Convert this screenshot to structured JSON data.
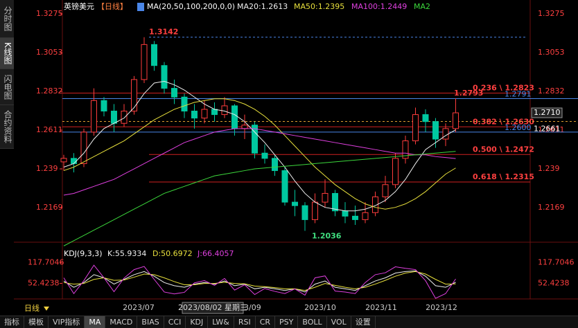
{
  "chart_data": [
    {
      "type": "candlestick",
      "title": "英镑美元",
      "period_label": "【日线】",
      "indicator": "MA(20,50,100,200,0,0)",
      "up_color": "#ff3c3c",
      "down_color": "#00c8a0",
      "ylim": [
        1.1991,
        1.3295
      ],
      "yticks": [
        1.3275,
        1.3053,
        1.2832,
        1.2611,
        1.239,
        1.2169
      ],
      "ohlc": [
        [
          1.243,
          1.247,
          1.238,
          1.245
        ],
        [
          1.245,
          1.248,
          1.237,
          1.242
        ],
        [
          1.242,
          1.262,
          1.24,
          1.26
        ],
        [
          1.26,
          1.285,
          1.258,
          1.278
        ],
        [
          1.278,
          1.28,
          1.269,
          1.272
        ],
        [
          1.272,
          1.276,
          1.26,
          1.265
        ],
        [
          1.265,
          1.276,
          1.263,
          1.272
        ],
        [
          1.272,
          1.292,
          1.27,
          1.29
        ],
        [
          1.29,
          1.3142,
          1.288,
          1.31
        ],
        [
          1.31,
          1.312,
          1.295,
          1.298
        ],
        [
          1.298,
          1.3,
          1.282,
          1.285
        ],
        [
          1.285,
          1.29,
          1.276,
          1.28
        ],
        [
          1.28,
          1.282,
          1.268,
          1.272
        ],
        [
          1.272,
          1.276,
          1.262,
          1.268
        ],
        [
          1.268,
          1.278,
          1.265,
          1.273
        ],
        [
          1.273,
          1.277,
          1.266,
          1.27
        ],
        [
          1.27,
          1.28,
          1.268,
          1.275
        ],
        [
          1.275,
          1.276,
          1.258,
          1.262
        ],
        [
          1.262,
          1.27,
          1.256,
          1.264
        ],
        [
          1.264,
          1.266,
          1.245,
          1.248
        ],
        [
          1.248,
          1.253,
          1.242,
          1.245
        ],
        [
          1.245,
          1.247,
          1.235,
          1.238
        ],
        [
          1.238,
          1.24,
          1.218,
          1.22
        ],
        [
          1.22,
          1.227,
          1.212,
          1.218
        ],
        [
          1.218,
          1.22,
          1.2036,
          1.21
        ],
        [
          1.21,
          1.225,
          1.208,
          1.22
        ],
        [
          1.22,
          1.233,
          1.217,
          1.225
        ],
        [
          1.225,
          1.227,
          1.212,
          1.215
        ],
        [
          1.215,
          1.22,
          1.208,
          1.212
        ],
        [
          1.212,
          1.218,
          1.207,
          1.21
        ],
        [
          1.21,
          1.22,
          1.208,
          1.214
        ],
        [
          1.214,
          1.226,
          1.212,
          1.223
        ],
        [
          1.223,
          1.235,
          1.22,
          1.23
        ],
        [
          1.23,
          1.248,
          1.228,
          1.245
        ],
        [
          1.245,
          1.258,
          1.242,
          1.255
        ],
        [
          1.255,
          1.274,
          1.253,
          1.27
        ],
        [
          1.27,
          1.273,
          1.26,
          1.266
        ],
        [
          1.266,
          1.268,
          1.251,
          1.256
        ],
        [
          1.256,
          1.265,
          1.252,
          1.262
        ],
        [
          1.262,
          1.2793,
          1.26,
          1.271
        ]
      ],
      "series": [
        {
          "name": "MA20:1.2613",
          "color": "#f0f0f0",
          "values": [
            1.24,
            1.242,
            1.248,
            1.256,
            1.262,
            1.265,
            1.268,
            1.274,
            1.282,
            1.288,
            1.289,
            1.287,
            1.284,
            1.28,
            1.276,
            1.273,
            1.272,
            1.27,
            1.266,
            1.26,
            1.254,
            1.247,
            1.24,
            1.232,
            1.225,
            1.22,
            1.217,
            1.216,
            1.215,
            1.215,
            1.216,
            1.218,
            1.221,
            1.226,
            1.233,
            1.242,
            1.25,
            1.254,
            1.258,
            1.2613
          ]
        },
        {
          "name": "MA50:1.2395",
          "color": "#e8e03c",
          "values": [
            1.238,
            1.24,
            1.243,
            1.246,
            1.249,
            1.252,
            1.255,
            1.259,
            1.263,
            1.267,
            1.27,
            1.273,
            1.275,
            1.277,
            1.278,
            1.279,
            1.279,
            1.278,
            1.276,
            1.273,
            1.269,
            1.264,
            1.258,
            1.252,
            1.246,
            1.24,
            1.235,
            1.23,
            1.226,
            1.222,
            1.219,
            1.217,
            1.216,
            1.217,
            1.219,
            1.222,
            1.226,
            1.231,
            1.236,
            1.2395
          ]
        },
        {
          "name": "MA100:1.2449",
          "color": "#e040e0",
          "values": [
            1.224,
            1.225,
            1.227,
            1.229,
            1.231,
            1.233,
            1.236,
            1.239,
            1.242,
            1.245,
            1.248,
            1.251,
            1.254,
            1.256,
            1.258,
            1.26,
            1.261,
            1.262,
            1.262,
            1.262,
            1.261,
            1.26,
            1.259,
            1.258,
            1.257,
            1.256,
            1.255,
            1.254,
            1.253,
            1.252,
            1.251,
            1.25,
            1.249,
            1.248,
            1.248,
            1.247,
            1.247,
            1.246,
            1.2455,
            1.2449
          ]
        },
        {
          "name": "MA2",
          "color": "#3cd83c",
          "values": [
            1.195,
            1.198,
            1.201,
            1.204,
            1.207,
            1.21,
            1.213,
            1.216,
            1.219,
            1.222,
            1.225,
            1.227,
            1.229,
            1.231,
            1.233,
            1.235,
            1.236,
            1.237,
            1.238,
            1.239,
            1.2395,
            1.24,
            1.2405,
            1.241,
            1.2415,
            1.242,
            1.2425,
            1.243,
            1.2435,
            1.244,
            1.2445,
            1.245,
            1.2455,
            1.246,
            1.2465,
            1.247,
            1.2475,
            1.248,
            1.2485,
            1.249
          ]
        }
      ],
      "fib_levels": [
        {
          "value": 1.2823,
          "label": "0.236 \\ 1.2823"
        },
        {
          "value": 1.263,
          "label": "0.382 \\ 1.2630"
        },
        {
          "value": 1.2472,
          "label": "0.500 \\ 1.2472"
        },
        {
          "value": 1.2315,
          "label": "0.618 \\ 1.2315"
        }
      ],
      "price_lines": [
        {
          "value": 1.2791,
          "label": "1.2791",
          "color": "#4a86e8"
        },
        {
          "value": 1.26,
          "label": "1.2600",
          "color": "#4a86e8"
        },
        {
          "value": 1.2661,
          "label": "1.2661",
          "color": "#e0a030"
        }
      ],
      "last_price": {
        "value": 1.271,
        "label": "1.2710"
      },
      "annotations": [
        {
          "value": 1.3142,
          "label": "1.3142",
          "color": "#ff4040"
        },
        {
          "value": 1.2036,
          "label": "1.2036",
          "color": "#40e080"
        },
        {
          "value": 1.2793,
          "label": "1.2793",
          "color": "#ff4040"
        }
      ]
    },
    {
      "type": "line",
      "title": "KDJ(9,3,3)",
      "ylim": [
        3,
        172
      ],
      "yticks": [
        117.7046,
        52.4238
      ],
      "series": [
        {
          "name": "K:55.9334",
          "color": "#f0f0f0",
          "values": [
            60,
            40,
            55,
            80,
            70,
            50,
            65,
            80,
            90,
            75,
            55,
            45,
            40,
            50,
            55,
            50,
            60,
            45,
            50,
            35,
            40,
            35,
            30,
            35,
            25,
            50,
            60,
            40,
            35,
            30,
            45,
            60,
            70,
            85,
            90,
            92,
            75,
            45,
            40,
            55.9334
          ]
        },
        {
          "name": "D:50.6972",
          "color": "#e8e03c",
          "values": [
            55,
            50,
            52,
            65,
            70,
            62,
            63,
            72,
            82,
            80,
            70,
            58,
            48,
            48,
            52,
            52,
            56,
            52,
            51,
            44,
            42,
            39,
            35,
            35,
            30,
            40,
            52,
            46,
            40,
            35,
            40,
            50,
            62,
            75,
            85,
            90,
            82,
            65,
            50,
            50.6972
          ]
        },
        {
          "name": "J:66.4057",
          "color": "#e040e0",
          "values": [
            70,
            20,
            61,
            110,
            70,
            26,
            69,
            96,
            106,
            65,
            25,
            19,
            24,
            54,
            61,
            46,
            68,
            31,
            48,
            17,
            36,
            27,
            20,
            35,
            15,
            70,
            76,
            28,
            25,
            20,
            55,
            80,
            86,
            105,
            100,
            96,
            61,
            5,
            20,
            66.4057
          ]
        }
      ]
    }
  ],
  "sidebar": [
    "分时图",
    "K线图",
    "闪电图",
    "合约资料"
  ],
  "period": "日线",
  "date_axis": [
    "2023/07",
    "3/09",
    "2023/10",
    "2023/11",
    "2023/12"
  ],
  "crosshair_date": "2023/08/02 星期三",
  "tabs": [
    "指标",
    "模板",
    "VIP指标",
    "MA",
    "MACD",
    "BIAS",
    "CCI",
    "KDJ",
    "LW&",
    "RSI",
    "CR",
    "PSY",
    "BOLL",
    "VOL",
    "设置"
  ]
}
